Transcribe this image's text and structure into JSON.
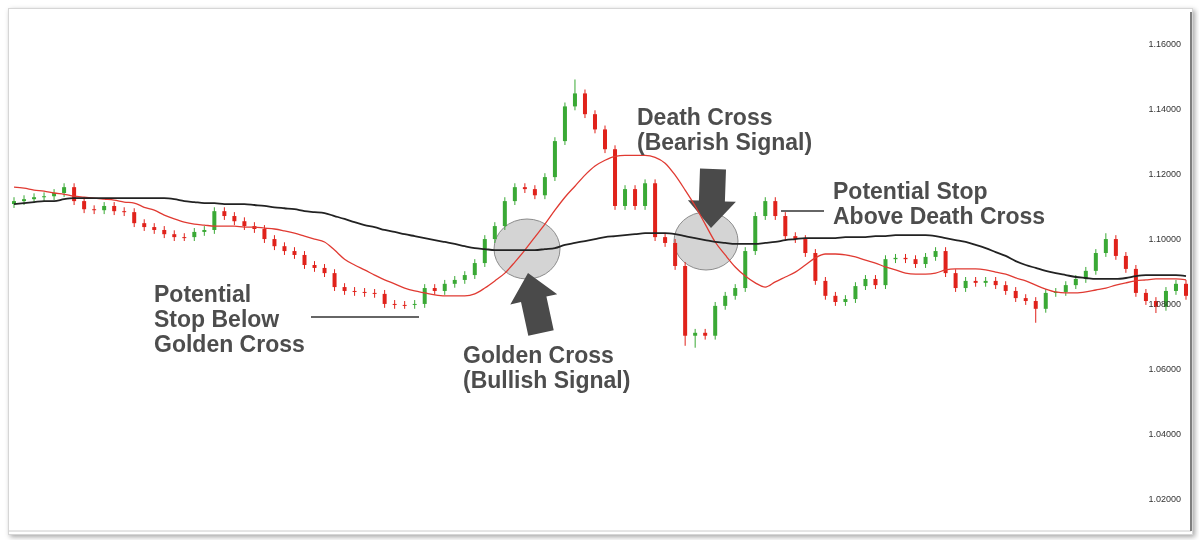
{
  "chart_data": {
    "type": "candlestick",
    "categories": [
      null,
      null,
      null,
      null,
      null,
      null,
      null,
      null,
      null,
      null,
      null,
      null,
      null,
      null,
      null,
      null,
      null,
      null,
      null,
      null,
      null,
      null,
      null,
      null,
      null,
      null,
      null,
      null,
      null,
      null,
      null,
      null,
      null,
      null,
      null,
      null,
      null,
      null,
      null,
      null,
      null,
      null,
      null,
      null,
      null,
      null,
      null,
      null,
      null,
      null,
      null,
      null,
      null,
      null,
      null,
      null,
      null,
      null,
      null,
      null,
      null,
      null,
      null,
      null,
      null,
      null,
      null,
      null,
      null,
      null,
      null,
      null,
      null,
      null,
      null,
      null,
      null,
      null,
      null,
      null,
      null,
      null,
      null,
      null,
      null,
      null,
      null,
      null,
      null,
      null,
      null,
      null,
      null,
      null,
      null,
      null,
      null,
      null,
      null,
      null,
      null,
      null,
      null,
      null,
      null,
      null,
      null,
      null,
      null,
      null,
      null,
      null,
      null,
      null,
      null,
      null,
      null,
      null
    ],
    "ohlc": [
      [
        1.1108,
        1.1129,
        1.1096,
        1.1117
      ],
      [
        1.1117,
        1.1135,
        1.1105,
        1.1123
      ],
      [
        1.1123,
        1.1141,
        1.1111,
        1.1129
      ],
      [
        1.1129,
        1.1144,
        1.1117,
        1.1132
      ],
      [
        1.1132,
        1.1154,
        1.112,
        1.1142
      ],
      [
        1.1142,
        1.1172,
        1.113,
        1.116
      ],
      [
        1.116,
        1.1172,
        1.1105,
        1.1117
      ],
      [
        1.1117,
        1.1129,
        1.108,
        1.1092
      ],
      [
        1.1092,
        1.1104,
        1.1077,
        1.1089
      ],
      [
        1.1089,
        1.1114,
        1.1077,
        1.1102
      ],
      [
        1.1102,
        1.1114,
        1.1074,
        1.1086
      ],
      [
        1.1086,
        1.1098,
        1.1071,
        1.1083
      ],
      [
        1.1083,
        1.1095,
        1.1037,
        1.1049
      ],
      [
        1.1049,
        1.1061,
        1.1025,
        1.1037
      ],
      [
        1.1037,
        1.1049,
        1.1016,
        1.1028
      ],
      [
        1.1028,
        1.104,
        1.1003,
        1.1015
      ],
      [
        1.1015,
        1.1027,
        1.0994,
        1.1006
      ],
      [
        1.1006,
        1.1018,
        1.0994,
        1.1006
      ],
      [
        1.1006,
        1.1034,
        1.0994,
        1.1022
      ],
      [
        1.1022,
        1.104,
        1.101,
        1.1028
      ],
      [
        1.1028,
        1.1098,
        1.1016,
        1.1086
      ],
      [
        1.1086,
        1.1098,
        1.1059,
        1.1071
      ],
      [
        1.1071,
        1.1083,
        1.1043,
        1.1055
      ],
      [
        1.1055,
        1.1067,
        1.1028,
        1.104
      ],
      [
        1.104,
        1.1052,
        1.1019,
        1.1031
      ],
      [
        1.1031,
        1.1043,
        1.0988,
        1.1
      ],
      [
        1.1,
        1.1012,
        1.0966,
        1.0978
      ],
      [
        1.0978,
        1.099,
        1.0951,
        1.0963
      ],
      [
        1.0963,
        1.0975,
        1.0939,
        1.0951
      ],
      [
        1.0951,
        1.0963,
        1.0908,
        1.092
      ],
      [
        1.092,
        1.0932,
        1.0899,
        1.0911
      ],
      [
        1.0911,
        1.0923,
        1.0883,
        1.0895
      ],
      [
        1.0895,
        1.0907,
        1.084,
        1.0852
      ],
      [
        1.0852,
        1.0864,
        1.0828,
        1.084
      ],
      [
        1.084,
        1.0852,
        1.0825,
        1.0837
      ],
      [
        1.0837,
        1.0849,
        1.0822,
        1.0834
      ],
      [
        1.0834,
        1.0846,
        1.0819,
        1.0831
      ],
      [
        1.0831,
        1.0843,
        1.0788,
        1.08
      ],
      [
        1.08,
        1.0812,
        1.0785,
        1.0797
      ],
      [
        1.0797,
        1.0809,
        1.0785,
        1.0797
      ],
      [
        1.0797,
        1.0812,
        1.0785,
        1.08
      ],
      [
        1.08,
        1.0861,
        1.0788,
        1.0849
      ],
      [
        1.0849,
        1.0861,
        1.0828,
        1.084
      ],
      [
        1.084,
        1.0874,
        1.0828,
        1.0862
      ],
      [
        1.0862,
        1.0886,
        1.085,
        1.0874
      ],
      [
        1.0874,
        1.0901,
        1.0862,
        1.0889
      ],
      [
        1.0889,
        1.0938,
        1.0877,
        1.0926
      ],
      [
        1.0926,
        1.1012,
        1.0914,
        1.1
      ],
      [
        1.1,
        1.1052,
        1.0988,
        1.104
      ],
      [
        1.104,
        1.1129,
        1.1028,
        1.1117
      ],
      [
        1.1117,
        1.1172,
        1.1105,
        1.116
      ],
      [
        1.116,
        1.1172,
        1.1142,
        1.1154
      ],
      [
        1.1154,
        1.1166,
        1.1123,
        1.1135
      ],
      [
        1.1135,
        1.1203,
        1.1123,
        1.1191
      ],
      [
        1.1191,
        1.1314,
        1.1179,
        1.1302
      ],
      [
        1.1302,
        1.1421,
        1.129,
        1.1409
      ],
      [
        1.1409,
        1.1492,
        1.1397,
        1.1449
      ],
      [
        1.1449,
        1.1461,
        1.1373,
        1.1385
      ],
      [
        1.1385,
        1.1397,
        1.1326,
        1.1338
      ],
      [
        1.1338,
        1.135,
        1.1265,
        1.1277
      ],
      [
        1.1277,
        1.1289,
        1.109,
        1.1102
      ],
      [
        1.1102,
        1.1166,
        1.109,
        1.1154
      ],
      [
        1.1154,
        1.1166,
        1.109,
        1.1102
      ],
      [
        1.1102,
        1.1184,
        1.109,
        1.1172
      ],
      [
        1.1172,
        1.1184,
        1.0994,
        1.1006
      ],
      [
        1.1006,
        1.1018,
        1.0976,
        1.0988
      ],
      [
        1.0988,
        1.1,
        1.0905,
        1.0917
      ],
      [
        1.0917,
        1.0929,
        1.0671,
        1.0702
      ],
      [
        1.0702,
        1.0723,
        1.0665,
        1.0711
      ],
      [
        1.0711,
        1.0723,
        1.069,
        1.0702
      ],
      [
        1.0702,
        1.0806,
        1.069,
        1.0794
      ],
      [
        1.0794,
        1.0837,
        1.0782,
        1.0825
      ],
      [
        1.0825,
        1.0861,
        1.0813,
        1.0849
      ],
      [
        1.0849,
        1.0975,
        1.0837,
        1.0963
      ],
      [
        1.0963,
        1.1083,
        1.0951,
        1.1071
      ],
      [
        1.1071,
        1.1129,
        1.1059,
        1.1117
      ],
      [
        1.1117,
        1.1129,
        1.1059,
        1.1071
      ],
      [
        1.1071,
        1.1083,
        1.0997,
        1.1009
      ],
      [
        1.1009,
        1.1021,
        1.0988,
        1.1
      ],
      [
        1.1,
        1.1012,
        1.0945,
        1.0957
      ],
      [
        1.0957,
        1.0969,
        1.0859,
        1.0871
      ],
      [
        1.0871,
        1.0883,
        1.0813,
        1.0825
      ],
      [
        1.0825,
        1.0837,
        1.0794,
        1.0806
      ],
      [
        1.0806,
        1.0827,
        1.0794,
        1.0815
      ],
      [
        1.0815,
        1.0867,
        1.0803,
        1.0855
      ],
      [
        1.0855,
        1.0889,
        1.0843,
        1.0877
      ],
      [
        1.0877,
        1.0889,
        1.0846,
        1.0858
      ],
      [
        1.0858,
        1.095,
        1.0846,
        1.0938
      ],
      [
        1.0938,
        1.0954,
        1.0926,
        1.0942
      ],
      [
        1.0942,
        1.0954,
        1.0926,
        1.0938
      ],
      [
        1.0938,
        1.095,
        1.0911,
        1.0923
      ],
      [
        1.0923,
        1.0957,
        1.0911,
        1.0945
      ],
      [
        1.0945,
        1.0975,
        1.0933,
        1.0963
      ],
      [
        1.0963,
        1.0975,
        1.0883,
        1.0895
      ],
      [
        1.0895,
        1.0907,
        1.0837,
        1.0849
      ],
      [
        1.0849,
        1.0883,
        1.0837,
        1.0871
      ],
      [
        1.0871,
        1.0883,
        1.0853,
        1.0865
      ],
      [
        1.0865,
        1.0883,
        1.0853,
        1.0871
      ],
      [
        1.0871,
        1.0883,
        1.0846,
        1.0858
      ],
      [
        1.0858,
        1.087,
        1.0828,
        1.084
      ],
      [
        1.084,
        1.0852,
        1.0806,
        1.0818
      ],
      [
        1.0818,
        1.083,
        1.0797,
        1.0809
      ],
      [
        1.0809,
        1.0821,
        1.0742,
        1.0785
      ],
      [
        1.0785,
        1.0846,
        1.0773,
        1.0834
      ],
      [
        1.0834,
        1.0849,
        1.0822,
        1.0837
      ],
      [
        1.0837,
        1.087,
        1.0825,
        1.0858
      ],
      [
        1.0858,
        1.0889,
        1.0846,
        1.0877
      ],
      [
        1.0877,
        1.0914,
        1.0865,
        1.0902
      ],
      [
        1.0902,
        1.0969,
        1.089,
        1.0957
      ],
      [
        1.0957,
        1.1018,
        1.0945,
        1.1
      ],
      [
        1.1,
        1.1012,
        1.0936,
        1.0948
      ],
      [
        1.0948,
        1.096,
        1.0896,
        1.0908
      ],
      [
        1.0908,
        1.092,
        1.0822,
        1.0834
      ],
      [
        1.0834,
        1.0846,
        1.0797,
        1.0809
      ],
      [
        1.0809,
        1.0821,
        1.0772,
        1.0791
      ],
      [
        1.0791,
        1.0852,
        1.0779,
        1.084
      ],
      [
        1.084,
        1.0874,
        1.0828,
        1.0862
      ],
      [
        1.0862,
        1.0874,
        1.0813,
        1.0825
      ]
    ],
    "colors": [
      "#3aa935",
      "#3aa935",
      "#3aa935",
      "#3aa935",
      "#3aa935",
      "#3aa935",
      "#e0221b",
      "#e0221b",
      "#e0221b",
      "#3aa935",
      "#e0221b",
      "#e0221b",
      "#e0221b",
      "#e0221b",
      "#e0221b",
      "#e0221b",
      "#e0221b",
      "#e0221b",
      "#3aa935",
      "#3aa935",
      "#3aa935",
      "#e0221b",
      "#e0221b",
      "#e0221b",
      "#e0221b",
      "#e0221b",
      "#e0221b",
      "#e0221b",
      "#e0221b",
      "#e0221b",
      "#e0221b",
      "#e0221b",
      "#e0221b",
      "#e0221b",
      "#e0221b",
      "#e0221b",
      "#e0221b",
      "#e0221b",
      "#e0221b",
      "#e0221b",
      "#3aa935",
      "#3aa935",
      "#e0221b",
      "#3aa935",
      "#3aa935",
      "#3aa935",
      "#3aa935",
      "#3aa935",
      "#3aa935",
      "#3aa935",
      "#3aa935",
      "#e0221b",
      "#e0221b",
      "#3aa935",
      "#3aa935",
      "#3aa935",
      "#3aa935",
      "#e0221b",
      "#e0221b",
      "#e0221b",
      "#e0221b",
      "#3aa935",
      "#e0221b",
      "#3aa935",
      "#e0221b",
      "#e0221b",
      "#e0221b",
      "#e0221b",
      "#3aa935",
      "#e0221b",
      "#3aa935",
      "#3aa935",
      "#3aa935",
      "#3aa935",
      "#3aa935",
      "#3aa935",
      "#e0221b",
      "#e0221b",
      "#e0221b",
      "#e0221b",
      "#e0221b",
      "#e0221b",
      "#e0221b",
      "#3aa935",
      "#3aa935",
      "#3aa935",
      "#e0221b",
      "#3aa935",
      "#3aa935",
      "#e0221b",
      "#e0221b",
      "#3aa935",
      "#3aa935",
      "#e0221b",
      "#e0221b",
      "#3aa935",
      "#e0221b",
      "#3aa935",
      "#e0221b",
      "#e0221b",
      "#e0221b",
      "#e0221b",
      "#e0221b",
      "#3aa935",
      "#3aa935",
      "#3aa935",
      "#3aa935",
      "#3aa935",
      "#3aa935",
      "#3aa935",
      "#e0221b",
      "#e0221b",
      "#e0221b",
      "#e0221b",
      "#e0221b",
      "#3aa935",
      "#3aa935",
      "#e0221b"
    ],
    "series": [
      {
        "type": "line",
        "color": "#e03a32",
        "values": [
          1.116,
          1.1157,
          1.1151,
          1.1148,
          1.1142,
          1.1138,
          1.1132,
          1.1129,
          1.1126,
          1.1123,
          1.112,
          1.1114,
          1.1111,
          1.1098,
          1.1089,
          1.1074,
          1.1062,
          1.1052,
          1.1046,
          1.1043,
          1.104,
          1.104,
          1.104,
          1.1037,
          1.1037,
          1.1034,
          1.1031,
          1.1025,
          1.1018,
          1.1009,
          1.1,
          1.0991,
          1.0966,
          1.0938,
          1.092,
          1.0905,
          1.0889,
          1.0874,
          1.0862,
          1.0849,
          1.084,
          1.0834,
          1.0828,
          1.0825,
          1.0825,
          1.0825,
          1.0831,
          1.0849,
          1.0871,
          1.0895,
          1.0929,
          1.0966,
          1.1006,
          1.1046,
          1.1089,
          1.1129,
          1.1163,
          1.1197,
          1.1225,
          1.1243,
          1.1255,
          1.1258,
          1.1258,
          1.1258,
          1.1252,
          1.1234,
          1.1197,
          1.1151,
          1.1102,
          1.1046,
          1.0991,
          1.0951,
          1.0914,
          1.0886,
          1.0865,
          1.0852,
          1.0868,
          1.0883,
          1.0898,
          1.092,
          1.0942,
          1.0954,
          1.0954,
          1.0951,
          1.0945,
          1.0935,
          1.0926,
          1.0914,
          1.0905,
          1.0895,
          1.0892,
          1.0892,
          1.0895,
          1.0905,
          1.0908,
          1.0908,
          1.0908,
          1.0905,
          1.0898,
          1.0892,
          1.088,
          1.0871,
          1.0858,
          1.0846,
          1.0837,
          1.0834,
          1.0834,
          1.0837,
          1.0843,
          1.0849,
          1.0858,
          1.0865,
          1.0871,
          1.0874,
          1.0877,
          1.0877,
          1.0877,
          1.0874
        ]
      },
      {
        "type": "line",
        "color": "#222222",
        "values": [
          1.1108,
          1.1111,
          1.1114,
          1.1117,
          1.1117,
          1.1123,
          1.1126,
          1.1126,
          1.1126,
          1.1126,
          1.1126,
          1.1126,
          1.1126,
          1.1126,
          1.1126,
          1.1126,
          1.1123,
          1.1117,
          1.1114,
          1.1111,
          1.1111,
          1.1108,
          1.1108,
          1.1108,
          1.1105,
          1.1102,
          1.1098,
          1.1095,
          1.1092,
          1.1086,
          1.1083,
          1.108,
          1.1071,
          1.1062,
          1.1052,
          1.1043,
          1.1037,
          1.1028,
          1.1022,
          1.1015,
          1.1009,
          1.1003,
          1.0997,
          1.0991,
          1.0985,
          1.0978,
          1.0972,
          1.0969,
          1.0966,
          1.0966,
          1.0966,
          1.0966,
          1.0966,
          1.0969,
          1.0972,
          1.0982,
          1.0988,
          1.0994,
          1.1,
          1.1006,
          1.1009,
          1.1012,
          1.1015,
          1.1018,
          1.1018,
          1.1018,
          1.1015,
          1.1009,
          1.1003,
          1.0997,
          1.0991,
          1.0988,
          1.0985,
          1.0985,
          1.0985,
          1.0988,
          1.0991,
          1.0997,
          1.1,
          1.1003,
          1.1003,
          1.1003,
          1.1003,
          1.1006,
          1.1006,
          1.1006,
          1.1009,
          1.1009,
          1.1012,
          1.1012,
          1.1012,
          1.1012,
          1.1009,
          1.1003,
          1.0997,
          1.0991,
          1.0982,
          1.0972,
          1.096,
          1.0948,
          1.0932,
          1.092,
          1.0911,
          1.0902,
          1.0895,
          1.0889,
          1.0883,
          1.088,
          1.0877,
          1.0877,
          1.0877,
          1.088,
          1.0886,
          1.0889,
          1.0889,
          1.0889,
          1.0889,
          1.0886
        ]
      }
    ],
    "ylim": [
      1.01,
      1.17
    ],
    "yticks": [
      {
        "value": 1.02,
        "label": "1.02000"
      },
      {
        "value": 1.04,
        "label": "1.04000"
      },
      {
        "value": 1.06,
        "label": "1.06000"
      },
      {
        "value": 1.08,
        "label": "1.08000"
      },
      {
        "value": 1.1,
        "label": "1.10000"
      },
      {
        "value": 1.12,
        "label": "1.12000"
      },
      {
        "value": 1.14,
        "label": "1.14000"
      },
      {
        "value": 1.16,
        "label": "1.16000"
      }
    ],
    "tick_labels": "y",
    "annotations": [
      "Potential\nStop Below\nGolden Cross",
      "Golden Cross\n(Bullish Signal)",
      "Death Cross\n(Bearish Signal)",
      "Potential Stop\nAbove Death Cross"
    ]
  }
}
